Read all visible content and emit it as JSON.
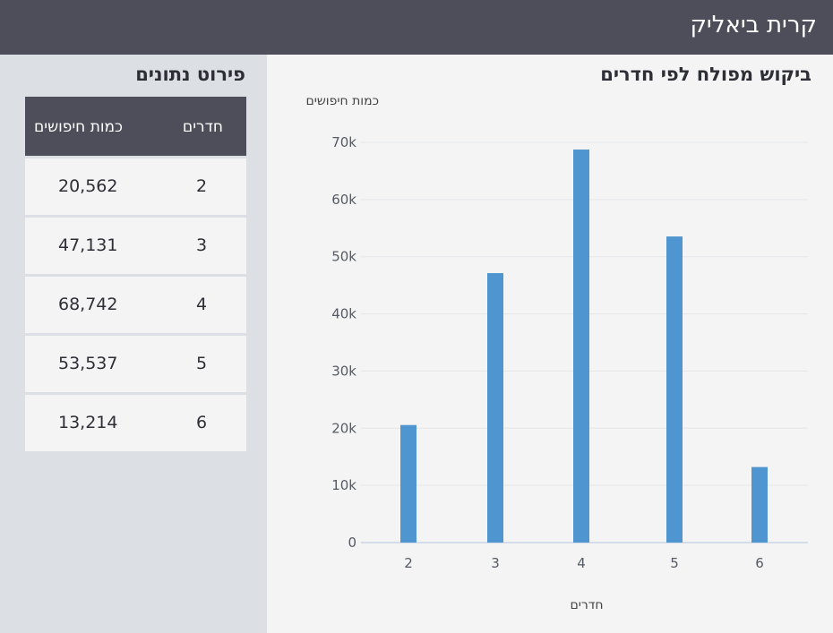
{
  "header": {
    "title": "קרית ביאליק"
  },
  "chart_panel": {
    "title": "ביקוש מפולח לפי חדרים"
  },
  "table_panel": {
    "title": "פירוט נתונים",
    "columns": {
      "rooms": "חדרים",
      "searches": "כמות חיפושים"
    },
    "rows": [
      {
        "rooms": "2",
        "searches": "20,562"
      },
      {
        "rooms": "3",
        "searches": "47,131"
      },
      {
        "rooms": "4",
        "searches": "68,742"
      },
      {
        "rooms": "5",
        "searches": "53,537"
      },
      {
        "rooms": "6",
        "searches": "13,214"
      }
    ]
  },
  "colors": {
    "bar": "#4f96d0",
    "header_bg": "#4d4e59",
    "panel_bg": "#f4f4f4",
    "page_bg": "#dcdfe4"
  },
  "chart_data": {
    "type": "bar",
    "categories": [
      "2",
      "3",
      "4",
      "5",
      "6"
    ],
    "values": [
      20562,
      47131,
      68742,
      53537,
      13214
    ],
    "title": "ביקוש מפולח לפי חדרים",
    "xlabel": "חדרים",
    "ylabel": "כמות חיפושים",
    "ylim": [
      0,
      70000
    ],
    "yticks": [
      0,
      10000,
      20000,
      30000,
      40000,
      50000,
      60000,
      70000
    ],
    "ytick_labels": [
      "0",
      "10k",
      "20k",
      "30k",
      "40k",
      "50k",
      "60k",
      "70k"
    ],
    "grid": true,
    "legend": "none"
  }
}
